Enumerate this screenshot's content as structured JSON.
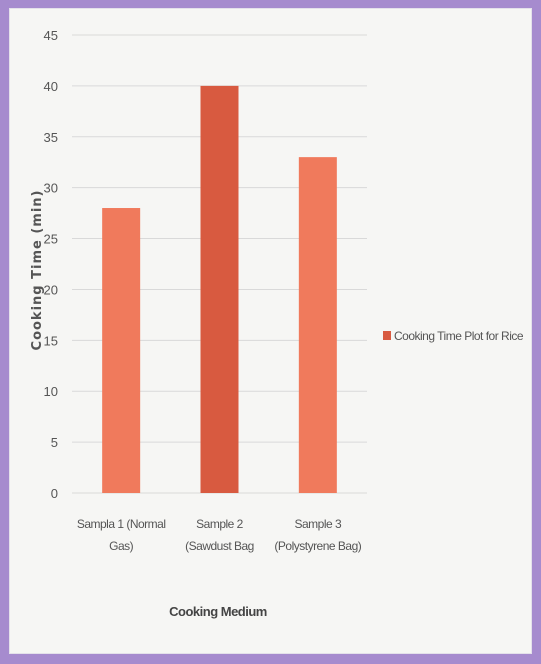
{
  "chart_data": {
    "type": "bar",
    "categories": [
      [
        "Sampla 1 (Normal",
        "Gas)"
      ],
      [
        "Sample 2",
        "(Sawdust Bag"
      ],
      [
        "Sample 3",
        "(Polystyrene Bag)"
      ]
    ],
    "series": [
      {
        "name": "Cooking Time Plot for Rice",
        "values": [
          28,
          40,
          33
        ]
      }
    ],
    "xlabel": "Cooking Medium",
    "ylabel": "Cooking Time (min)",
    "ylim": [
      0,
      45
    ],
    "yticks": [
      0,
      5,
      10,
      15,
      20,
      25,
      30,
      35,
      40,
      45
    ],
    "grid": true,
    "legend": "right",
    "colors": {
      "bar": "#f07a5c",
      "bar_highlight": "#d85a40",
      "legend_swatch": "#d85a40",
      "frame": "#a68bce",
      "panel": "#f6f6f4",
      "grid": "#d9d9d9"
    }
  }
}
